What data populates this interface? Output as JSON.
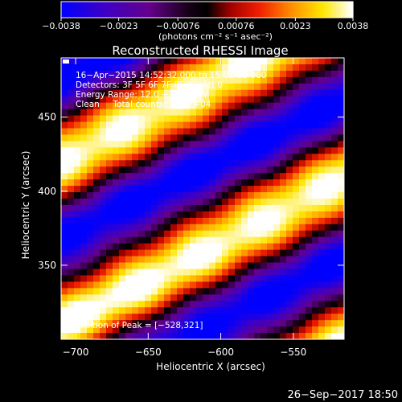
{
  "chart_data": {
    "type": "heatmap",
    "title": "Reconstructed RHESSI Image",
    "xlabel": "Heliocentric X (arcsec)",
    "ylabel": "Heliocentric Y (arcsec)",
    "xlim": [
      -710,
      -515
    ],
    "ylim": [
      300,
      490
    ],
    "x_ticks": [
      -700,
      -650,
      -600,
      -550
    ],
    "y_ticks": [
      350,
      400,
      450
    ],
    "colorbar": {
      "min": -0.0038,
      "max": 0.0038,
      "ticks": [
        -0.0038,
        -0.0023,
        -0.00076,
        0.00076,
        0.0023,
        0.0038
      ],
      "tick_labels": [
        "−0.0038",
        "−0.0023",
        "−0.00076",
        "0.00076",
        "0.0023",
        "0.0038"
      ],
      "unit_label": "(photons cm⁻² s⁻¹ asec⁻²)"
    },
    "annotations": [
      "16−Apr−2015 14:52:32.000 to 15:02:32.000",
      "Detectors: 3F 5F 6F 7F 8F 9F, Att 0",
      "Energy Range: 12.0 − 25.0 keV",
      "Clean     Total counts: 1.52E+04"
    ],
    "peak_label": "Position of Peak = [−528,321]",
    "peak": [
      -528,
      321
    ],
    "timestamp": "26−Sep−2017 18:50",
    "pattern": {
      "ridge_slope": 0.5,
      "ridge_offset_at_x_minus700": 316,
      "stripe_period_y": 110
    },
    "grid": false,
    "colormap": "blue-purple-red-yellow-white"
  }
}
